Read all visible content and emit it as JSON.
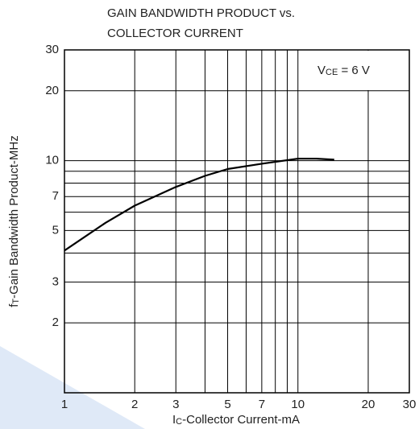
{
  "chart_data": {
    "type": "line",
    "title": [
      "GAIN BANDWIDTH PRODUCT vs.",
      "COLLECTOR CURRENT"
    ],
    "x_label": [
      "I",
      "C",
      "-Collector Current-mA"
    ],
    "y_label": [
      "f",
      "T",
      "-Gain Bandwidth Product-MHz"
    ],
    "annotation": [
      "V",
      "CE",
      " = 6 V"
    ],
    "log_x": true,
    "log_y": true,
    "grid": true,
    "xlim": [
      1,
      30
    ],
    "ylim": [
      1,
      30
    ],
    "xticks": [
      1,
      2,
      3,
      5,
      7,
      10,
      20,
      30
    ],
    "yticks": [
      2,
      3,
      5,
      7,
      10,
      20,
      30
    ],
    "xgrid": [
      2,
      3,
      4,
      5,
      6,
      7,
      8,
      9,
      10,
      20
    ],
    "ygrid": [
      2,
      3,
      4,
      5,
      6,
      7,
      8,
      9,
      10,
      20
    ],
    "series": [
      {
        "color": "#000000",
        "x": [
          1,
          1.5,
          2,
          3,
          4,
          5,
          7,
          10,
          12,
          14.3
        ],
        "values": [
          4.1,
          5.4,
          6.4,
          7.7,
          8.6,
          9.2,
          9.7,
          10.2,
          10.2,
          10.1
        ]
      }
    ]
  }
}
